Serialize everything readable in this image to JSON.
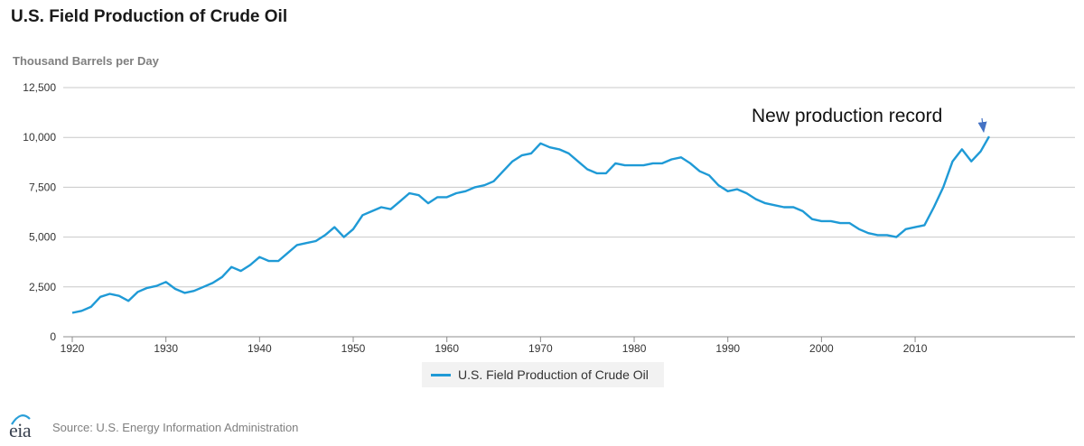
{
  "header": {
    "title": "U.S. Field Production of Crude Oil",
    "y_axis_label": "Thousand Barrels per Day"
  },
  "legend": {
    "label": "U.S. Field Production of Crude Oil"
  },
  "footer": {
    "logo_text": "eia",
    "source": "Source: U.S. Energy Information Administration"
  },
  "colors": {
    "series": "#1f9ad6",
    "grid": "#c8c8c8",
    "annotation_arrow": "#4472c4"
  },
  "icons": {
    "logo": "eia-logo-icon"
  },
  "chart_data": {
    "type": "line",
    "title": "U.S. Field Production of Crude Oil",
    "ylabel": "Thousand Barrels per Day",
    "xlabel": "",
    "ylim": [
      0,
      12500
    ],
    "xlim": [
      1920,
      2018
    ],
    "yticks": [
      0,
      2500,
      5000,
      7500,
      10000,
      12500
    ],
    "ytick_labels": [
      "0",
      "2,500",
      "5,000",
      "7,500",
      "10,000",
      "12,500"
    ],
    "xticks": [
      1920,
      1930,
      1940,
      1950,
      1960,
      1970,
      1980,
      1990,
      2000,
      2010
    ],
    "xtick_labels": [
      "1920",
      "1930",
      "1940",
      "1950",
      "1960",
      "1970",
      "1980",
      "1990",
      "2000",
      "2010"
    ],
    "grid": true,
    "legend_position": "bottom-center",
    "annotation": {
      "text": "New production record",
      "x": 2017.9,
      "y": 10050
    },
    "series": [
      {
        "name": "U.S. Field Production of Crude Oil",
        "x": [
          1920,
          1921,
          1922,
          1923,
          1924,
          1925,
          1926,
          1927,
          1928,
          1929,
          1930,
          1931,
          1932,
          1933,
          1934,
          1935,
          1936,
          1937,
          1938,
          1939,
          1940,
          1941,
          1942,
          1943,
          1944,
          1945,
          1946,
          1947,
          1948,
          1949,
          1950,
          1951,
          1952,
          1953,
          1954,
          1955,
          1956,
          1957,
          1958,
          1959,
          1960,
          1961,
          1962,
          1963,
          1964,
          1965,
          1966,
          1967,
          1968,
          1969,
          1970,
          1971,
          1972,
          1973,
          1974,
          1975,
          1976,
          1977,
          1978,
          1979,
          1980,
          1981,
          1982,
          1983,
          1984,
          1985,
          1986,
          1987,
          1988,
          1989,
          1990,
          1991,
          1992,
          1993,
          1994,
          1995,
          1996,
          1997,
          1998,
          1999,
          2000,
          2001,
          2002,
          2003,
          2004,
          2005,
          2006,
          2007,
          2008,
          2009,
          2010,
          2011,
          2012,
          2013,
          2014,
          2015,
          2016,
          2017,
          2017.9
        ],
        "values": [
          1200,
          1300,
          1500,
          2000,
          2150,
          2050,
          1800,
          2250,
          2450,
          2550,
          2750,
          2400,
          2200,
          2300,
          2500,
          2700,
          3000,
          3500,
          3300,
          3600,
          4000,
          3800,
          3800,
          4200,
          4600,
          4700,
          4800,
          5100,
          5500,
          5000,
          5400,
          6100,
          6300,
          6500,
          6400,
          6800,
          7200,
          7100,
          6700,
          7000,
          7000,
          7200,
          7300,
          7500,
          7600,
          7800,
          8300,
          8800,
          9100,
          9200,
          9700,
          9500,
          9400,
          9200,
          8800,
          8400,
          8200,
          8200,
          8700,
          8600,
          8600,
          8600,
          8700,
          8700,
          8900,
          9000,
          8700,
          8300,
          8100,
          7600,
          7300,
          7400,
          7200,
          6900,
          6700,
          6600,
          6500,
          6500,
          6300,
          5900,
          5800,
          5800,
          5700,
          5700,
          5400,
          5200,
          5100,
          5100,
          5000,
          5400,
          5500,
          5600,
          6500,
          7500,
          8800,
          9400,
          8800,
          9300,
          10050
        ]
      }
    ]
  }
}
